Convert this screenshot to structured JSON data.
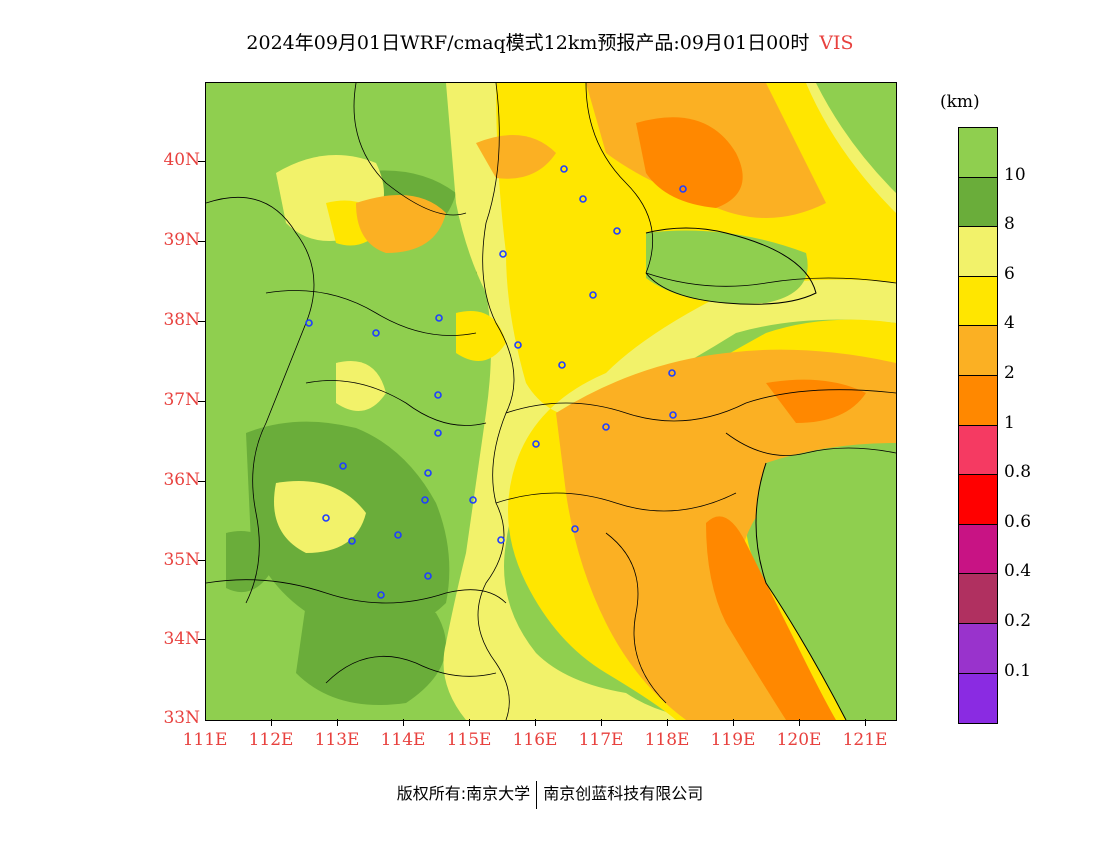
{
  "title": {
    "main": "2024年09月01日WRF/cmaq模式12km预报产品:09月01日00时",
    "variable": "VIS"
  },
  "map": {
    "lat_labels": [
      "40N",
      "39N",
      "38N",
      "37N",
      "36N",
      "35N",
      "34N",
      "33N"
    ],
    "lon_labels": [
      "111E",
      "112E",
      "113E",
      "114E",
      "115E",
      "116E",
      "117E",
      "118E",
      "119E",
      "120E",
      "121E"
    ],
    "city_marker_color": "#1f3fff"
  },
  "legend": {
    "unit": "(km)",
    "labels": [
      "10",
      "8",
      "6",
      "4",
      "2",
      "1",
      "0.8",
      "0.6",
      "0.4",
      "0.2",
      "0.1"
    ],
    "colors": [
      "#8fcf4f",
      "#6aad3a",
      "#f2f26a",
      "#ffe600",
      "#fbb023",
      "#ff8800",
      "#f53a62",
      "#ff0000",
      "#c81384",
      "#b03060",
      "#9933cc",
      "#8a2be2"
    ]
  },
  "footer": {
    "left": "版权所有:南京大学",
    "right": "南京创蓝科技有限公司"
  }
}
